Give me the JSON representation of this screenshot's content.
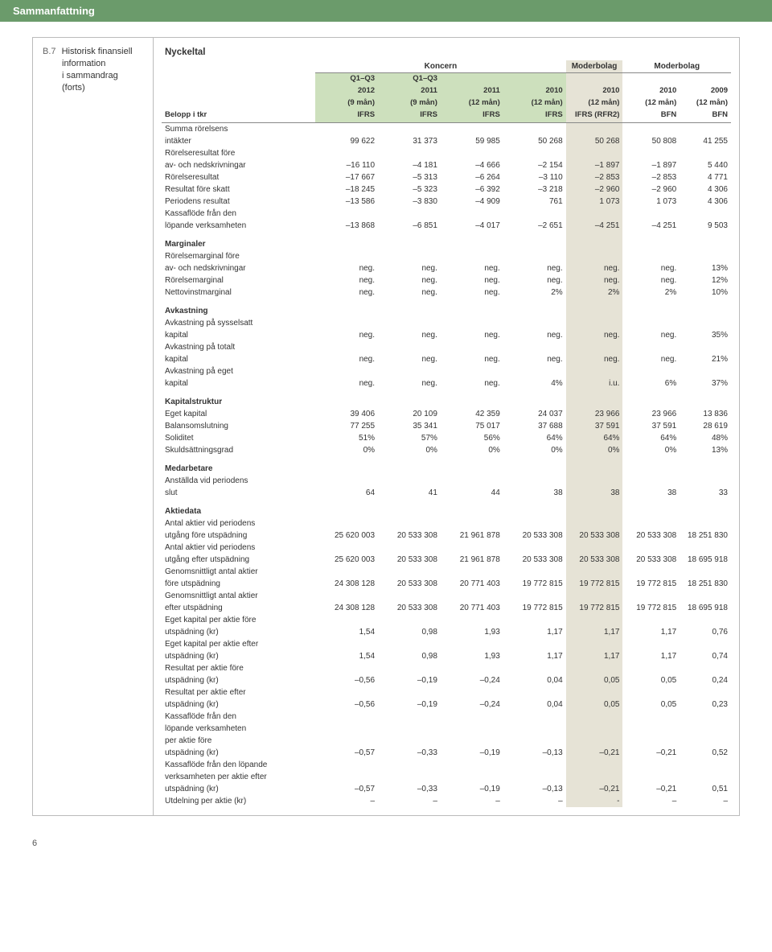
{
  "header": "Sammanfattning",
  "left": {
    "key": "B.7",
    "lines": [
      "Historisk finansiell",
      "information",
      "i sammandrag",
      "(forts)"
    ]
  },
  "title": "Nyckeltal",
  "group_headers": {
    "koncern": "Koncern",
    "moder1": "Moderbolag",
    "moder2": "Moderbolag"
  },
  "col_headers": {
    "label": [
      "Belopp i tkr"
    ],
    "r1": [
      "Q1–Q3",
      "Q1–Q3",
      "",
      "",
      "",
      "",
      ""
    ],
    "r2": [
      "2012",
      "2011",
      "2011",
      "2010",
      "2010",
      "2010",
      "2009"
    ],
    "r3": [
      "(9 mån)",
      "(9 mån)",
      "(12 mån)",
      "(12 mån)",
      "(12 mån)",
      "(12 mån)",
      "(12 mån)"
    ],
    "r4": [
      "IFRS",
      "IFRS",
      "IFRS",
      "IFRS",
      "IFRS (RFR2)",
      "BFN",
      "BFN"
    ]
  },
  "sections": [
    {
      "rows": [
        {
          "label": "Summa rörelsens\nintäkter",
          "v": [
            "99 622",
            "31 373",
            "59 985",
            "50 268",
            "50 268",
            "50 808",
            "41 255"
          ]
        },
        {
          "label": "Rörelseresultat före\nav- och nedskrivningar",
          "v": [
            "–16 110",
            "–4 181",
            "–4 666",
            "–2 154",
            "–1 897",
            "–1 897",
            "5 440"
          ]
        },
        {
          "label": "Rörelseresultat",
          "v": [
            "–17 667",
            "–5 313",
            "–6 264",
            "–3 110",
            "–2 853",
            "–2 853",
            "4 771"
          ]
        },
        {
          "label": "Resultat före skatt",
          "v": [
            "–18 245",
            "–5 323",
            "–6 392",
            "–3 218",
            "–2 960",
            "–2 960",
            "4 306"
          ]
        },
        {
          "label": "Periodens resultat",
          "v": [
            "–13 586",
            "–3 830",
            "–4 909",
            "761",
            "1 073",
            "1 073",
            "4 306"
          ]
        },
        {
          "label": "Kassaflöde från den\nlöpande verksamheten",
          "v": [
            "–13 868",
            "–6 851",
            "–4 017",
            "–2 651",
            "–4 251",
            "–4 251",
            "9 503"
          ]
        }
      ]
    },
    {
      "title": "Marginaler",
      "rows": [
        {
          "label": "Rörelsemarginal före\nav- och nedskrivningar",
          "v": [
            "neg.",
            "neg.",
            "neg.",
            "neg.",
            "neg.",
            "neg.",
            "13%"
          ]
        },
        {
          "label": "Rörelsemarginal",
          "v": [
            "neg.",
            "neg.",
            "neg.",
            "neg.",
            "neg.",
            "neg.",
            "12%"
          ]
        },
        {
          "label": "Nettovinstmarginal",
          "v": [
            "neg.",
            "neg.",
            "neg.",
            "2%",
            "2%",
            "2%",
            "10%"
          ]
        }
      ]
    },
    {
      "title": "Avkastning",
      "rows": [
        {
          "label": "Avkastning på sysselsatt\nkapital",
          "v": [
            "neg.",
            "neg.",
            "neg.",
            "neg.",
            "neg.",
            "neg.",
            "35%"
          ]
        },
        {
          "label": "Avkastning på totalt\nkapital",
          "v": [
            "neg.",
            "neg.",
            "neg.",
            "neg.",
            "neg.",
            "neg.",
            "21%"
          ]
        },
        {
          "label": "Avkastning på eget\nkapital",
          "v": [
            "neg.",
            "neg.",
            "neg.",
            "4%",
            "i.u.",
            "6%",
            "37%"
          ]
        }
      ]
    },
    {
      "title": "Kapitalstruktur",
      "rows": [
        {
          "label": "Eget kapital",
          "v": [
            "39 406",
            "20 109",
            "42 359",
            "24 037",
            "23 966",
            "23 966",
            "13 836"
          ]
        },
        {
          "label": "Balansomslutning",
          "v": [
            "77 255",
            "35 341",
            "75 017",
            "37 688",
            "37 591",
            "37 591",
            "28 619"
          ]
        },
        {
          "label": "Soliditet",
          "v": [
            "51%",
            "57%",
            "56%",
            "64%",
            "64%",
            "64%",
            "48%"
          ]
        },
        {
          "label": "Skuldsättningsgrad",
          "v": [
            "0%",
            "0%",
            "0%",
            "0%",
            "0%",
            "0%",
            "13%"
          ]
        }
      ]
    },
    {
      "title": "Medarbetare",
      "rows": [
        {
          "label": "Anställda vid periodens\nslut",
          "v": [
            "64",
            "41",
            "44",
            "38",
            "38",
            "38",
            "33"
          ]
        }
      ]
    },
    {
      "title": "Aktiedata",
      "rows": [
        {
          "label": "Antal aktier vid periodens\nutgång före utspädning",
          "v": [
            "25 620 003",
            "20 533 308",
            "21 961 878",
            "20 533 308",
            "20 533 308",
            "20 533 308",
            "18 251 830"
          ]
        },
        {
          "label": "Antal aktier vid periodens\nutgång efter utspädning",
          "v": [
            "25 620 003",
            "20 533 308",
            "21 961 878",
            "20 533 308",
            "20 533 308",
            "20 533 308",
            "18 695 918"
          ]
        },
        {
          "label": "Genomsnittligt antal aktier\nföre utspädning",
          "v": [
            "24 308 128",
            "20 533 308",
            "20 771 403",
            "19 772 815",
            "19 772 815",
            "19 772 815",
            "18 251 830"
          ]
        },
        {
          "label": "Genomsnittligt antal aktier\nefter utspädning",
          "v": [
            "24 308 128",
            "20 533 308",
            "20 771 403",
            "19 772 815",
            "19 772 815",
            "19 772 815",
            "18 695 918"
          ]
        },
        {
          "label": "Eget kapital per aktie före\nutspädning (kr)",
          "v": [
            "1,54",
            "0,98",
            "1,93",
            "1,17",
            "1,17",
            "1,17",
            "0,76"
          ]
        },
        {
          "label": "Eget kapital per aktie efter\nutspädning (kr)",
          "v": [
            "1,54",
            "0,98",
            "1,93",
            "1,17",
            "1,17",
            "1,17",
            "0,74"
          ]
        },
        {
          "label": "Resultat per aktie före\nutspädning (kr)",
          "v": [
            "–0,56",
            "–0,19",
            "–0,24",
            "0,04",
            "0,05",
            "0,05",
            "0,24"
          ]
        },
        {
          "label": "Resultat per aktie efter\nutspädning (kr)",
          "v": [
            "–0,56",
            "–0,19",
            "–0,24",
            "0,04",
            "0,05",
            "0,05",
            "0,23"
          ]
        },
        {
          "label": "Kassaflöde från den\nlöpande verksamheten\nper aktie före\nutspädning (kr)",
          "v": [
            "–0,57",
            "–0,33",
            "–0,19",
            "–0,13",
            "–0,21",
            "–0,21",
            "0,52"
          ]
        },
        {
          "label": "Kassaflöde från den löpande\nverksamheten per aktie efter\nutspädning (kr)",
          "v": [
            "–0,57",
            "–0,33",
            "–0,19",
            "–0,13",
            "–0,21",
            "–0,21",
            "0,51"
          ]
        },
        {
          "label": "Utdelning per aktie (kr)",
          "v": [
            "–",
            "–",
            "–",
            "–",
            "-",
            "–",
            "–"
          ]
        }
      ]
    }
  ],
  "page_number": "6",
  "colors": {
    "header_bg": "#6b9b6b",
    "shade_bg": "#e6e3d6",
    "green_hdr": "#cde0bd"
  },
  "col_widths_pct": [
    27,
    11,
    11,
    11,
    11,
    10,
    10,
    9
  ]
}
